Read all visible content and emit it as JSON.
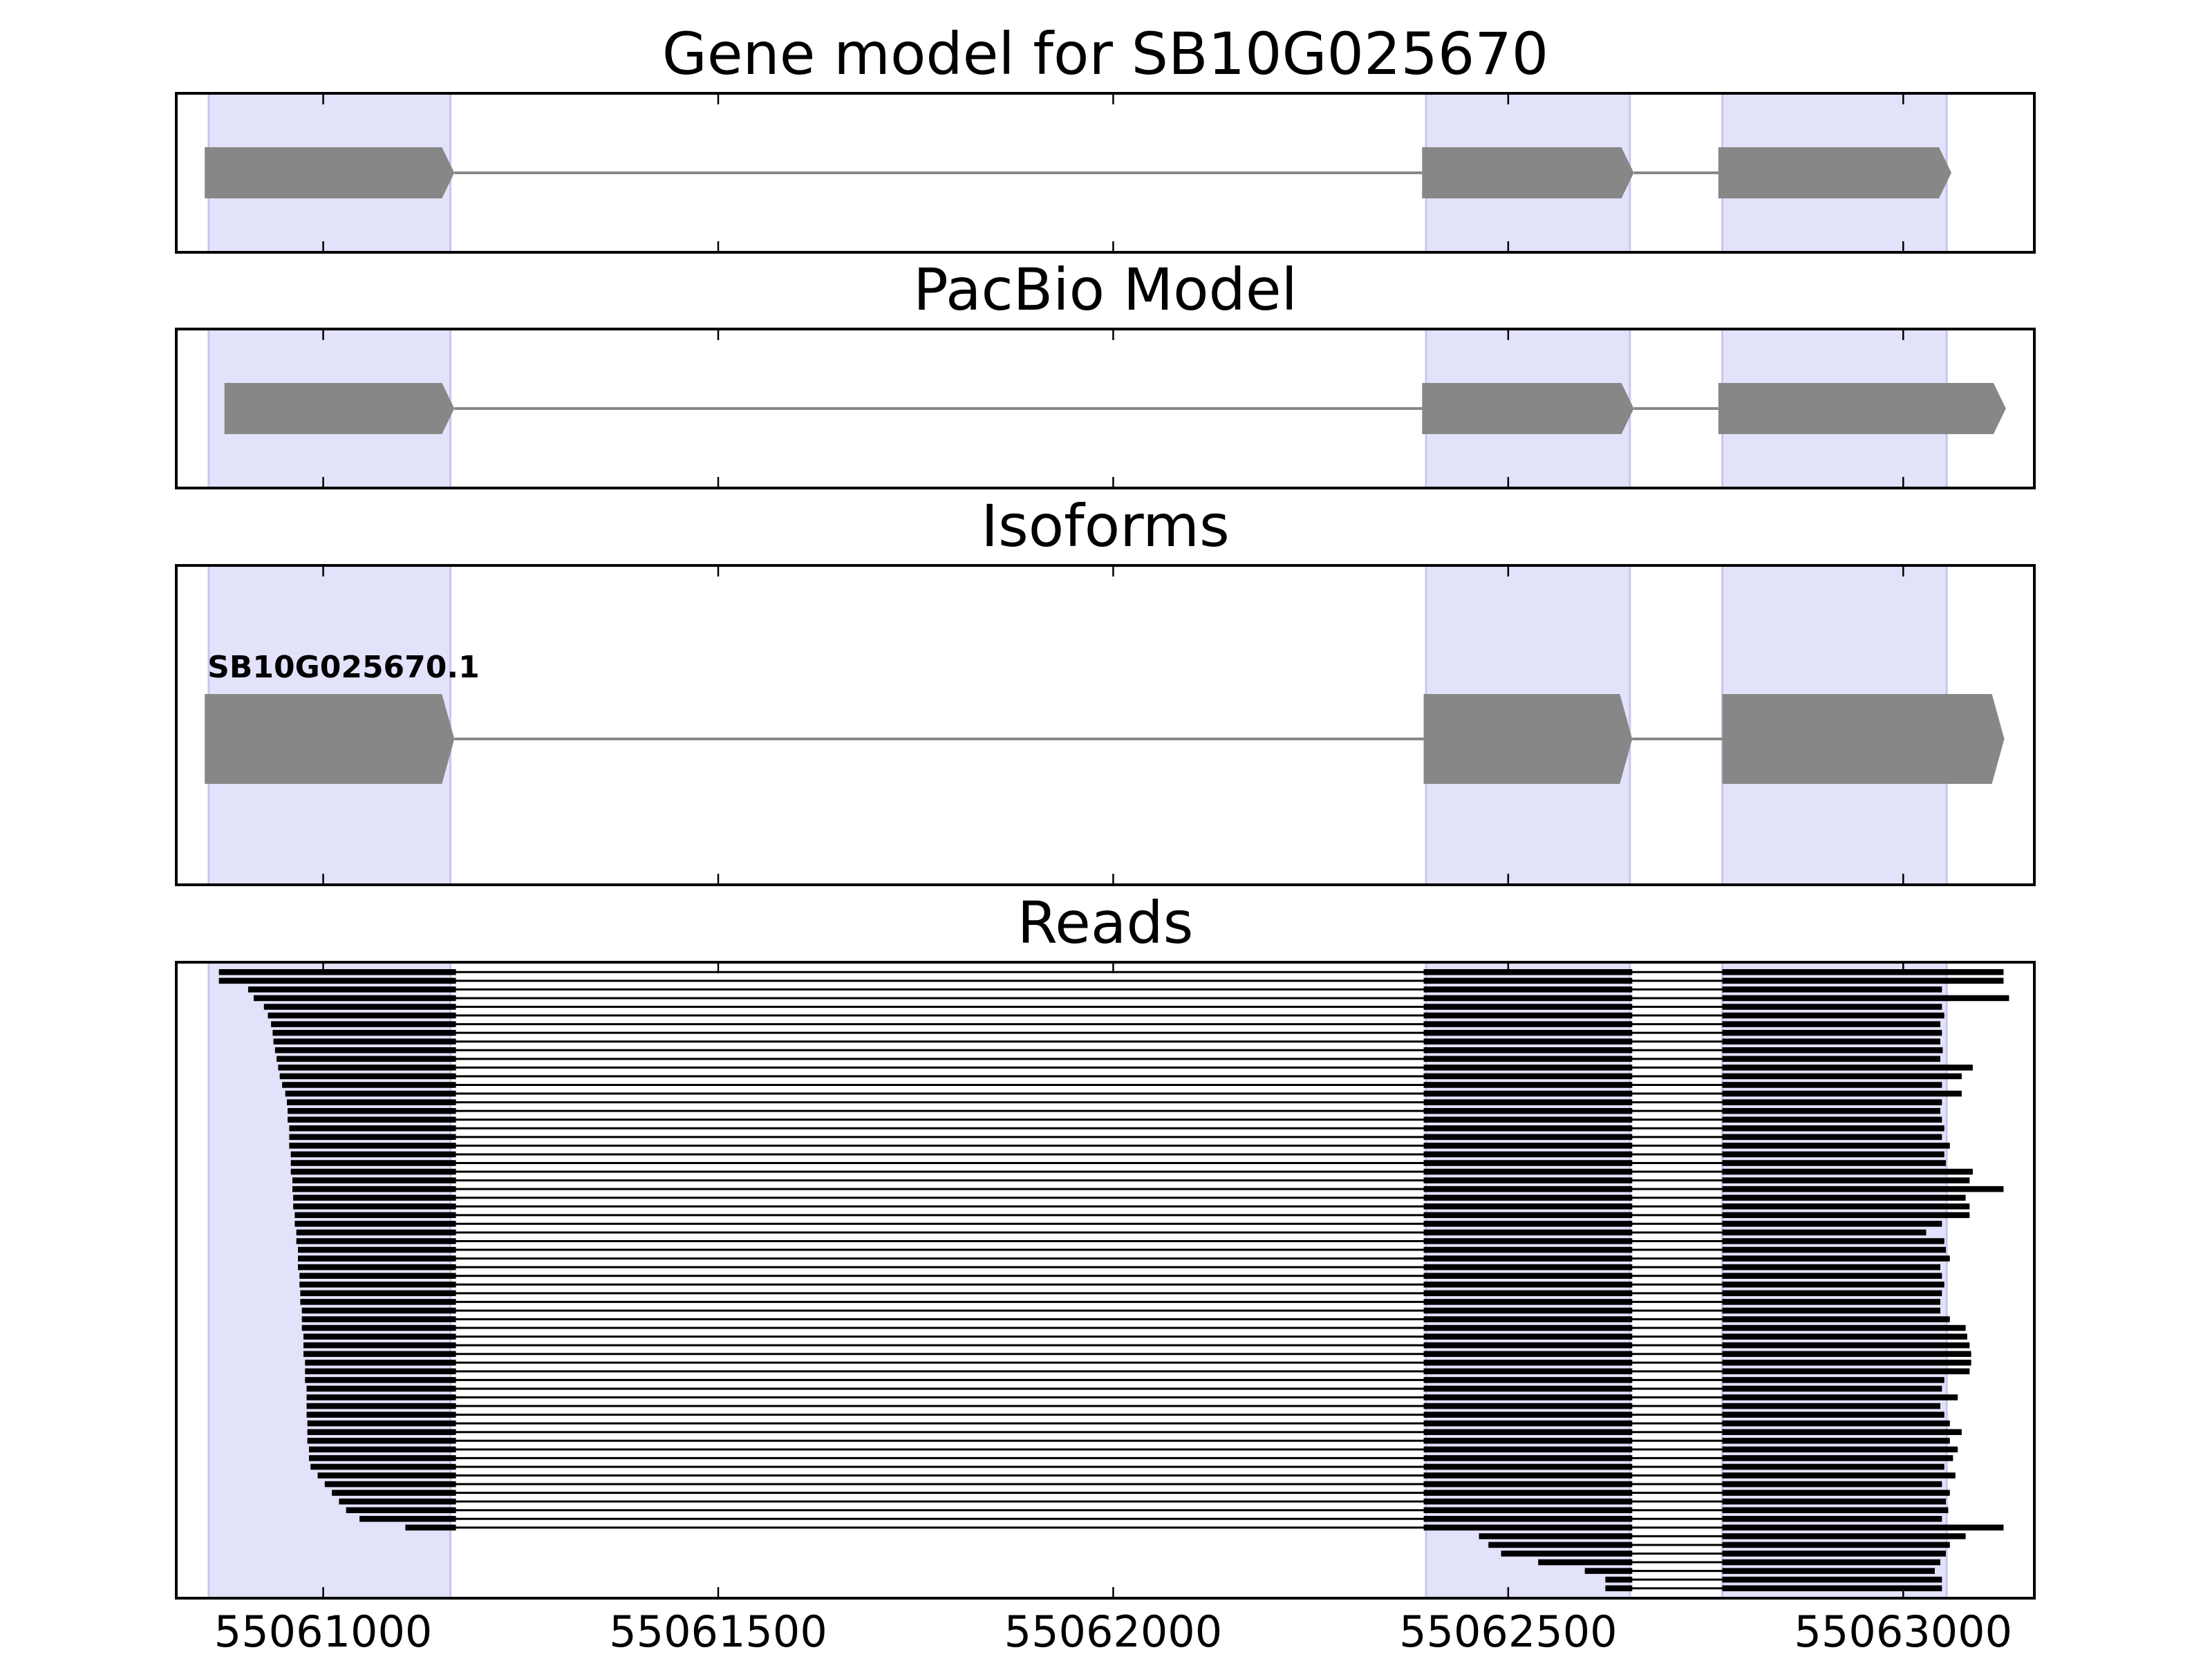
{
  "chart_data": {
    "type": "gene-tracks",
    "xlim": [
      55060814,
      55063166
    ],
    "xticks": [
      55061000,
      55061500,
      55062000,
      55062500,
      55063000
    ],
    "shade_color": "#e2e2fb",
    "exon_color": "#878787",
    "read_color": "#000000",
    "regions": [
      [
        55060855,
        55061161
      ],
      [
        55062396,
        55062654
      ],
      [
        55062771,
        55063055
      ]
    ],
    "panels": [
      {
        "title": "Gene model for SB10G025670",
        "models": [
          {
            "exons": [
              [
                55060850,
                55061166
              ],
              [
                55062391,
                55062659
              ],
              [
                55062766,
                55063061
              ]
            ]
          }
        ]
      },
      {
        "title": "PacBio Model",
        "models": [
          {
            "exons": [
              [
                55060875,
                55061166
              ],
              [
                55062391,
                55062659
              ],
              [
                55062766,
                55063130
              ]
            ]
          }
        ]
      },
      {
        "title": "Isoforms",
        "models": [
          {
            "name": "SB10G025670.1",
            "exons": [
              [
                55060850,
                55061166
              ],
              [
                55062393,
                55062657
              ],
              [
                55062771,
                55063128
              ]
            ]
          }
        ]
      },
      {
        "title": "Reads",
        "junctions": [
          [
            55061168,
            55062393
          ],
          [
            55062657,
            55062771
          ]
        ],
        "reads": [
          [
            55060868,
            55063127
          ],
          [
            55060868,
            55063127
          ],
          [
            55060905,
            55063049
          ],
          [
            55060912,
            55063134
          ],
          [
            55060925,
            55063049
          ],
          [
            55060930,
            55063052
          ],
          [
            55060934,
            55063047
          ],
          [
            55060936,
            55063049
          ],
          [
            55060937,
            55063047
          ],
          [
            55060939,
            55063050
          ],
          [
            55060941,
            55063047
          ],
          [
            55060943,
            55063088
          ],
          [
            55060945,
            55063074
          ],
          [
            55060948,
            55063049
          ],
          [
            55060952,
            55063074
          ],
          [
            55060954,
            55063049
          ],
          [
            55060955,
            55063047
          ],
          [
            55060955,
            55063049
          ],
          [
            55060957,
            55063052
          ],
          [
            55060957,
            55063049
          ],
          [
            55060957,
            55063059
          ],
          [
            55060959,
            55063052
          ],
          [
            55060959,
            55063054
          ],
          [
            55060959,
            55063088
          ],
          [
            55060961,
            55063084
          ],
          [
            55060961,
            55063127
          ],
          [
            55060962,
            55063079
          ],
          [
            55060962,
            55063084
          ],
          [
            55060964,
            55063084
          ],
          [
            55060964,
            55063049
          ],
          [
            55060966,
            55063029
          ],
          [
            55060966,
            55063052
          ],
          [
            55060968,
            55063054
          ],
          [
            55060968,
            55063059
          ],
          [
            55060968,
            55063047
          ],
          [
            55060970,
            55063049
          ],
          [
            55060970,
            55063052
          ],
          [
            55060971,
            55063049
          ],
          [
            55060971,
            55063047
          ],
          [
            55060973,
            55063047
          ],
          [
            55060973,
            55063059
          ],
          [
            55060973,
            55063079
          ],
          [
            55060975,
            55063081
          ],
          [
            55060975,
            55063084
          ],
          [
            55060975,
            55063086
          ],
          [
            55060977,
            55063086
          ],
          [
            55060977,
            55063084
          ],
          [
            55060977,
            55063052
          ],
          [
            55060979,
            55063049
          ],
          [
            55060979,
            55063069
          ],
          [
            55060979,
            55063047
          ],
          [
            55060979,
            55063052
          ],
          [
            55060980,
            55063059
          ],
          [
            55060980,
            55063074
          ],
          [
            55060980,
            55063059
          ],
          [
            55060982,
            55063069
          ],
          [
            55060982,
            55063063
          ],
          [
            55060984,
            55063052
          ],
          [
            55060993,
            55063066
          ],
          [
            55061002,
            55063049
          ],
          [
            55061011,
            55063059
          ],
          [
            55061020,
            55063054
          ],
          [
            55061029,
            55063057
          ],
          [
            55061046,
            55063049
          ],
          [
            55061104,
            55063127
          ],
          [
            55062463,
            55063079
          ],
          [
            55062475,
            55063059
          ],
          [
            55062491,
            55063054
          ],
          [
            55062538,
            55063047
          ],
          [
            55062597,
            55063040
          ],
          [
            55062623,
            55063049
          ],
          [
            55062623,
            55063049
          ]
        ]
      }
    ]
  }
}
